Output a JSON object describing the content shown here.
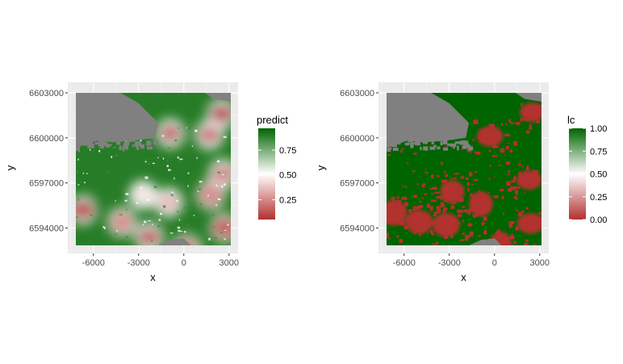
{
  "chart_data": [
    {
      "type": "heatmap",
      "title": "",
      "xlabel": "x",
      "ylabel": "y",
      "xlim": [
        -7700,
        3600
      ],
      "ylim": [
        6592300,
        6603700
      ],
      "x_ticks": [
        -6000,
        -3000,
        0,
        3000
      ],
      "x_tick_labels": [
        "-6000",
        "-3000",
        "0",
        "3000"
      ],
      "y_ticks": [
        6594000,
        6597000,
        6600000,
        6603000
      ],
      "y_tick_labels": [
        "6594000",
        "6597000",
        "6600000",
        "6603000"
      ],
      "raster_extent": {
        "x": [
          -7500,
          3200
        ],
        "y": [
          6592000,
          6603000
        ]
      },
      "grid": true,
      "legend": {
        "title": "predict",
        "position": "right",
        "colors": [
          "#b2302e",
          "#ffffff",
          "#006400"
        ],
        "range": [
          0.05,
          0.97
        ],
        "ticks": [
          0.25,
          0.5,
          0.75
        ],
        "tick_labels": [
          "0.25",
          "0.50",
          "0.75"
        ]
      },
      "na_color": "#808080",
      "hotspots": [
        {
          "x": -900,
          "y": 6600300,
          "value": 0.1
        },
        {
          "x": 2500,
          "y": 6601600,
          "value": 0.05
        },
        {
          "x": 1700,
          "y": 6600200,
          "value": 0.15
        },
        {
          "x": 2600,
          "y": 6597600,
          "value": 0.2
        },
        {
          "x": 1800,
          "y": 6596200,
          "value": 0.25
        },
        {
          "x": -6700,
          "y": 6595200,
          "value": 0.1
        },
        {
          "x": -4100,
          "y": 6594400,
          "value": 0.25
        },
        {
          "x": -2300,
          "y": 6593400,
          "value": 0.1
        },
        {
          "x": 200,
          "y": 6592600,
          "value": 0.15
        },
        {
          "x": 2700,
          "y": 6594000,
          "value": 0.15
        },
        {
          "x": -1000,
          "y": 6595700,
          "value": 0.35
        },
        {
          "x": -2700,
          "y": 6596200,
          "value": 0.45
        }
      ]
    },
    {
      "type": "heatmap",
      "title": "",
      "xlabel": "x",
      "ylabel": "y",
      "xlim": [
        -7700,
        3600
      ],
      "ylim": [
        6592300,
        6603700
      ],
      "x_ticks": [
        -6000,
        -3000,
        0,
        3000
      ],
      "x_tick_labels": [
        "-6000",
        "-3000",
        "0",
        "3000"
      ],
      "y_ticks": [
        6594000,
        6597000,
        6600000,
        6603000
      ],
      "y_tick_labels": [
        "6594000",
        "6597000",
        "6600000",
        "6603000"
      ],
      "raster_extent": {
        "x": [
          -7500,
          3200
        ],
        "y": [
          6592000,
          6603000
        ]
      },
      "grid": true,
      "legend": {
        "title": "lc",
        "position": "right",
        "colors": [
          "#b2302e",
          "#ffffff",
          "#006400"
        ],
        "range": [
          0,
          1
        ],
        "ticks": [
          0,
          0.25,
          0.5,
          0.75,
          1
        ],
        "tick_labels": [
          "0.00",
          "0.25",
          "0.50",
          "0.75",
          "1.00"
        ]
      },
      "na_color": "#808080",
      "hotspots": [
        {
          "x": -2800,
          "y": 6596400,
          "value": 0
        },
        {
          "x": -900,
          "y": 6595600,
          "value": 0
        },
        {
          "x": -3200,
          "y": 6594200,
          "value": 0
        },
        {
          "x": -5000,
          "y": 6594400,
          "value": 0
        },
        {
          "x": -6700,
          "y": 6595000,
          "value": 0
        },
        {
          "x": -300,
          "y": 6600100,
          "value": 0
        },
        {
          "x": 2500,
          "y": 6601700,
          "value": 0
        },
        {
          "x": 2300,
          "y": 6597200,
          "value": 0
        },
        {
          "x": 2400,
          "y": 6594300,
          "value": 0
        },
        {
          "x": 400,
          "y": 6592900,
          "value": 0
        }
      ]
    }
  ]
}
